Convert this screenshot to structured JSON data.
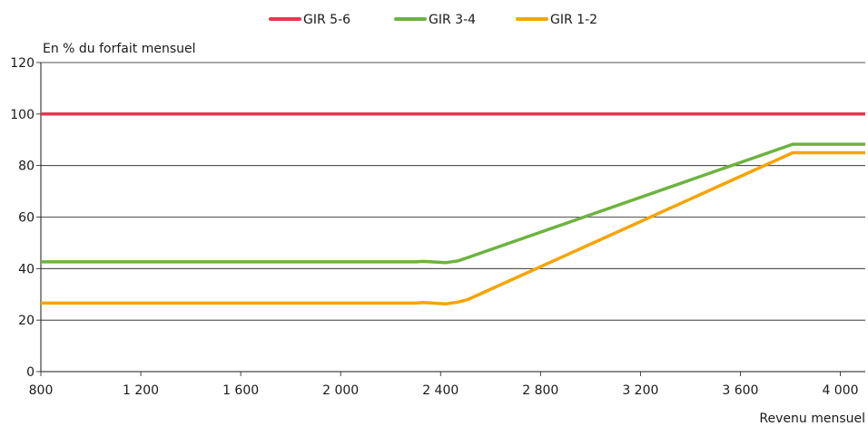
{
  "chart_data": {
    "type": "line",
    "ylabel": "En % du forfait mensuel",
    "xlabel": "Revenu mensuel",
    "xlim": [
      800,
      4100
    ],
    "ylim": [
      0,
      120
    ],
    "x_ticks": [
      800,
      1200,
      1600,
      2000,
      2400,
      2800,
      3200,
      3600,
      4000
    ],
    "x_tick_labels": [
      "800",
      "1 200",
      "1 600",
      "2 000",
      "2 400",
      "2 800",
      "3 200",
      "3 600",
      "4 000"
    ],
    "y_ticks": [
      0,
      20,
      40,
      60,
      80,
      100,
      120
    ],
    "y_tick_labels": [
      "0",
      "20",
      "40",
      "60",
      "80",
      "100",
      "120"
    ],
    "grid": "horizontal",
    "legend_position": "top-center",
    "series": [
      {
        "name": "GIR 5-6",
        "color": "#e5384f",
        "x": [
          800,
          4100
        ],
        "y": [
          100,
          100
        ]
      },
      {
        "name": "GIR 3-4",
        "color": "#6db33f",
        "x": [
          800,
          2300,
          2330,
          2420,
          2470,
          2500,
          3810,
          4100
        ],
        "y": [
          42.6,
          42.6,
          42.8,
          42.3,
          43,
          44,
          88.3,
          88.3
        ]
      },
      {
        "name": "GIR 1-2",
        "color": "#f6a400",
        "x": [
          800,
          2300,
          2330,
          2420,
          2470,
          2510,
          3810,
          4100
        ],
        "y": [
          26.6,
          26.6,
          26.8,
          26.3,
          27,
          28,
          85,
          85
        ]
      }
    ]
  }
}
